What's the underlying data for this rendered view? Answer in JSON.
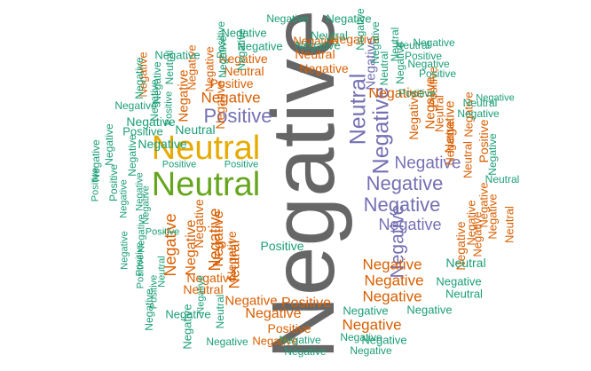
{
  "palette": {
    "teal": "#1b9e77",
    "orange": "#d95f02",
    "purple": "#7570b3",
    "gray": "#666666",
    "gold": "#e6ab02",
    "green": "#66a61e"
  },
  "words": [
    {
      "text": "Negative",
      "color": "gray",
      "rotate": true
    },
    {
      "text": "Neutral",
      "color": "gold",
      "rotate": false
    },
    {
      "text": "Neutral",
      "color": "green",
      "rotate": false
    },
    {
      "text": "Positive",
      "color": "purple",
      "rotate": false
    },
    {
      "text": "Negative",
      "color": "purple",
      "rotate": false
    },
    {
      "text": "Negative",
      "color": "purple",
      "rotate": false
    },
    {
      "text": "Negative",
      "color": "purple",
      "rotate": false
    },
    {
      "text": "Negative",
      "color": "purple",
      "rotate": false
    },
    {
      "text": "Negative",
      "color": "purple",
      "rotate": true
    },
    {
      "text": "Neutral",
      "color": "purple",
      "rotate": true
    },
    {
      "text": "Negative",
      "color": "purple",
      "rotate": true
    },
    {
      "text": "Negative",
      "color": "purple",
      "rotate": true
    },
    {
      "text": "Negative",
      "color": "orange",
      "rotate": false
    },
    {
      "text": "Negative",
      "color": "orange",
      "rotate": false
    },
    {
      "text": "Negative",
      "color": "orange",
      "rotate": false
    },
    {
      "text": "Negative",
      "color": "orange",
      "rotate": false
    },
    {
      "text": "Negative",
      "color": "orange",
      "rotate": false
    },
    {
      "text": "Negative",
      "color": "orange",
      "rotate": false
    },
    {
      "text": "Neutral",
      "color": "orange",
      "rotate": false
    },
    {
      "text": "Negative",
      "color": "orange",
      "rotate": false
    },
    {
      "text": "Neutral",
      "color": "orange",
      "rotate": false
    },
    {
      "text": "Positive",
      "color": "orange",
      "rotate": false
    },
    {
      "text": "Negative",
      "color": "orange",
      "rotate": false
    },
    {
      "text": "Positive",
      "color": "orange",
      "rotate": false
    },
    {
      "text": "Negative",
      "color": "orange",
      "rotate": false
    },
    {
      "text": "Neutral",
      "color": "orange",
      "rotate": false
    },
    {
      "text": "Negative",
      "color": "orange",
      "rotate": false
    },
    {
      "text": "Positive",
      "color": "orange",
      "rotate": false
    },
    {
      "text": "Negative",
      "color": "orange",
      "rotate": false
    },
    {
      "text": "Negative",
      "color": "orange",
      "rotate": false
    },
    {
      "text": "Negative",
      "color": "orange",
      "rotate": false
    },
    {
      "text": "Negative",
      "color": "orange",
      "rotate": false
    },
    {
      "text": "Negative",
      "color": "orange",
      "rotate": true
    },
    {
      "text": "Negative",
      "color": "orange",
      "rotate": true
    },
    {
      "text": "Negative",
      "color": "orange",
      "rotate": true
    },
    {
      "text": "Negative",
      "color": "orange",
      "rotate": true
    },
    {
      "text": "Neutral",
      "color": "orange",
      "rotate": true
    },
    {
      "text": "Neutral",
      "color": "orange",
      "rotate": true
    },
    {
      "text": "Positive",
      "color": "orange",
      "rotate": true
    },
    {
      "text": "Negative",
      "color": "orange",
      "rotate": true
    },
    {
      "text": "Positive",
      "color": "orange",
      "rotate": true
    },
    {
      "text": "Negative",
      "color": "orange",
      "rotate": true
    },
    {
      "text": "Negative",
      "color": "orange",
      "rotate": true
    },
    {
      "text": "Negative",
      "color": "orange",
      "rotate": true
    },
    {
      "text": "Negative",
      "color": "orange",
      "rotate": true
    },
    {
      "text": "Negative",
      "color": "orange",
      "rotate": true
    },
    {
      "text": "Neutral",
      "color": "orange",
      "rotate": true
    },
    {
      "text": "Negative",
      "color": "orange",
      "rotate": true
    },
    {
      "text": "Negative",
      "color": "orange",
      "rotate": true
    },
    {
      "text": "Negative",
      "color": "orange",
      "rotate": true
    },
    {
      "text": "Negative",
      "color": "orange",
      "rotate": true
    },
    {
      "text": "Neutral",
      "color": "orange",
      "rotate": true
    },
    {
      "text": "Negative",
      "color": "orange",
      "rotate": true
    },
    {
      "text": "Negative",
      "color": "orange",
      "rotate": true
    },
    {
      "text": "Negative",
      "color": "orange",
      "rotate": true
    },
    {
      "text": "Negative",
      "color": "orange",
      "rotate": true
    },
    {
      "text": "Negative",
      "color": "orange",
      "rotate": true
    },
    {
      "text": "Negative",
      "color": "orange",
      "rotate": true
    },
    {
      "text": "Negative",
      "color": "orange",
      "rotate": true
    },
    {
      "text": "Positive",
      "color": "teal",
      "rotate": false
    },
    {
      "text": "Negative",
      "color": "teal",
      "rotate": false
    },
    {
      "text": "Negative",
      "color": "teal",
      "rotate": false
    },
    {
      "text": "Negative",
      "color": "teal",
      "rotate": false
    },
    {
      "text": "Neutral",
      "color": "teal",
      "rotate": false
    },
    {
      "text": "Negative",
      "color": "teal",
      "rotate": false
    },
    {
      "text": "Negative",
      "color": "teal",
      "rotate": false
    },
    {
      "text": "Neutral",
      "color": "teal",
      "rotate": false
    },
    {
      "text": "Positive",
      "color": "teal",
      "rotate": false
    },
    {
      "text": "Negative",
      "color": "teal",
      "rotate": false
    },
    {
      "text": "Negative",
      "color": "teal",
      "rotate": false
    },
    {
      "text": "Positive",
      "color": "teal",
      "rotate": false
    },
    {
      "text": "Negative",
      "color": "teal",
      "rotate": false
    },
    {
      "text": "Negative",
      "color": "teal",
      "rotate": false
    },
    {
      "text": "Negative",
      "color": "teal",
      "rotate": false
    },
    {
      "text": "Negative",
      "color": "teal",
      "rotate": false
    },
    {
      "text": "Positive",
      "color": "teal",
      "rotate": false
    },
    {
      "text": "Neutral",
      "color": "teal",
      "rotate": false
    },
    {
      "text": "Positive",
      "color": "teal",
      "rotate": false
    },
    {
      "text": "Positive",
      "color": "teal",
      "rotate": false
    },
    {
      "text": "Positive",
      "color": "teal",
      "rotate": false
    },
    {
      "text": "Positive",
      "color": "teal",
      "rotate": false
    },
    {
      "text": "Negative",
      "color": "teal",
      "rotate": false
    },
    {
      "text": "Negative",
      "color": "teal",
      "rotate": false
    },
    {
      "text": "Neutral",
      "color": "teal",
      "rotate": false
    },
    {
      "text": "Neutral",
      "color": "teal",
      "rotate": false
    },
    {
      "text": "Neutral",
      "color": "teal",
      "rotate": false
    },
    {
      "text": "Negative",
      "color": "teal",
      "rotate": false
    },
    {
      "text": "Neutral",
      "color": "teal",
      "rotate": false
    },
    {
      "text": "Negative",
      "color": "teal",
      "rotate": false
    },
    {
      "text": "Negative",
      "color": "teal",
      "rotate": false
    },
    {
      "text": "Negative",
      "color": "teal",
      "rotate": false
    },
    {
      "text": "Negative",
      "color": "teal",
      "rotate": false
    },
    {
      "text": "Negative",
      "color": "teal",
      "rotate": false
    },
    {
      "text": "Negative",
      "color": "teal",
      "rotate": false
    },
    {
      "text": "Negative",
      "color": "teal",
      "rotate": false
    },
    {
      "text": "Negative",
      "color": "teal",
      "rotate": false
    },
    {
      "text": "Negative",
      "color": "teal",
      "rotate": false
    },
    {
      "text": "Negative",
      "color": "teal",
      "rotate": true
    },
    {
      "text": "Positive",
      "color": "teal",
      "rotate": true
    },
    {
      "text": "Negative",
      "color": "teal",
      "rotate": true
    },
    {
      "text": "Negative",
      "color": "teal",
      "rotate": true
    },
    {
      "text": "Negative",
      "color": "teal",
      "rotate": true
    },
    {
      "text": "Neutral",
      "color": "teal",
      "rotate": true
    },
    {
      "text": "Neutral",
      "color": "teal",
      "rotate": true
    },
    {
      "text": "Negative",
      "color": "teal",
      "rotate": true
    },
    {
      "text": "Neutral",
      "color": "teal",
      "rotate": true
    },
    {
      "text": "Negative",
      "color": "teal",
      "rotate": true
    },
    {
      "text": "Negative",
      "color": "teal",
      "rotate": true
    },
    {
      "text": "Positive",
      "color": "teal",
      "rotate": true
    },
    {
      "text": "Negative",
      "color": "teal",
      "rotate": true
    },
    {
      "text": "Negative",
      "color": "teal",
      "rotate": true
    },
    {
      "text": "Negative",
      "color": "teal",
      "rotate": true
    },
    {
      "text": "Negative",
      "color": "teal",
      "rotate": true
    },
    {
      "text": "Positive",
      "color": "teal",
      "rotate": true
    },
    {
      "text": "Positive",
      "color": "teal",
      "rotate": true
    },
    {
      "text": "Negative",
      "color": "teal",
      "rotate": true
    },
    {
      "text": "Negative",
      "color": "teal",
      "rotate": true
    },
    {
      "text": "Negative",
      "color": "teal",
      "rotate": true
    },
    {
      "text": "Negative",
      "color": "teal",
      "rotate": true
    },
    {
      "text": "Positive",
      "color": "teal",
      "rotate": true
    },
    {
      "text": "Positive",
      "color": "teal",
      "rotate": true
    },
    {
      "text": "Negative",
      "color": "teal",
      "rotate": true
    },
    {
      "text": "Neutral",
      "color": "teal",
      "rotate": true
    },
    {
      "text": "Positive",
      "color": "teal",
      "rotate": true
    },
    {
      "text": "Negative",
      "color": "teal",
      "rotate": true
    },
    {
      "text": "Negative",
      "color": "teal",
      "rotate": true
    },
    {
      "text": "Neutral",
      "color": "teal",
      "rotate": true
    },
    {
      "text": "Negative",
      "color": "teal",
      "rotate": true
    },
    {
      "text": "Negative",
      "color": "teal",
      "rotate": true
    }
  ]
}
